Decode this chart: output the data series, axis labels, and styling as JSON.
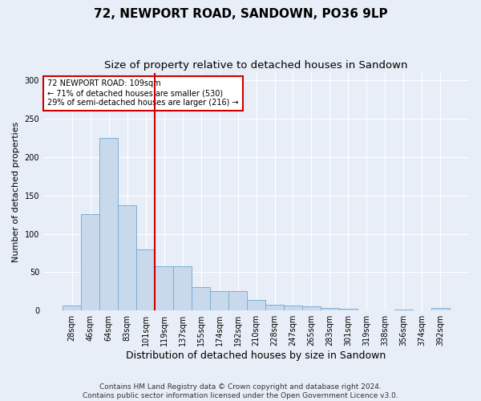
{
  "title": "72, NEWPORT ROAD, SANDOWN, PO36 9LP",
  "subtitle": "Size of property relative to detached houses in Sandown",
  "xlabel": "Distribution of detached houses by size in Sandown",
  "ylabel": "Number of detached properties",
  "categories": [
    "28sqm",
    "46sqm",
    "64sqm",
    "83sqm",
    "101sqm",
    "119sqm",
    "137sqm",
    "155sqm",
    "174sqm",
    "192sqm",
    "210sqm",
    "228sqm",
    "247sqm",
    "265sqm",
    "283sqm",
    "301sqm",
    "319sqm",
    "338sqm",
    "356sqm",
    "374sqm",
    "392sqm"
  ],
  "values": [
    7,
    126,
    225,
    137,
    80,
    58,
    58,
    31,
    25,
    25,
    14,
    8,
    7,
    5,
    3,
    2,
    0,
    0,
    1,
    0,
    3
  ],
  "bar_color": "#c9d9ec",
  "bar_edge_color": "#7aaed4",
  "vline_x_index": 4,
  "vline_color": "#cc0000",
  "annotation_text": "72 NEWPORT ROAD: 109sqm\n← 71% of detached houses are smaller (530)\n29% of semi-detached houses are larger (216) →",
  "annotation_box_color": "white",
  "annotation_box_edge_color": "#cc0000",
  "ylim": [
    0,
    310
  ],
  "yticks": [
    0,
    50,
    100,
    150,
    200,
    250,
    300
  ],
  "footer_text": "Contains HM Land Registry data © Crown copyright and database right 2024.\nContains public sector information licensed under the Open Government Licence v3.0.",
  "title_fontsize": 11,
  "subtitle_fontsize": 9.5,
  "xlabel_fontsize": 9,
  "ylabel_fontsize": 8,
  "tick_fontsize": 7,
  "footer_fontsize": 6.5,
  "background_color": "#e8eef7",
  "axes_background_color": "#e8eef7"
}
